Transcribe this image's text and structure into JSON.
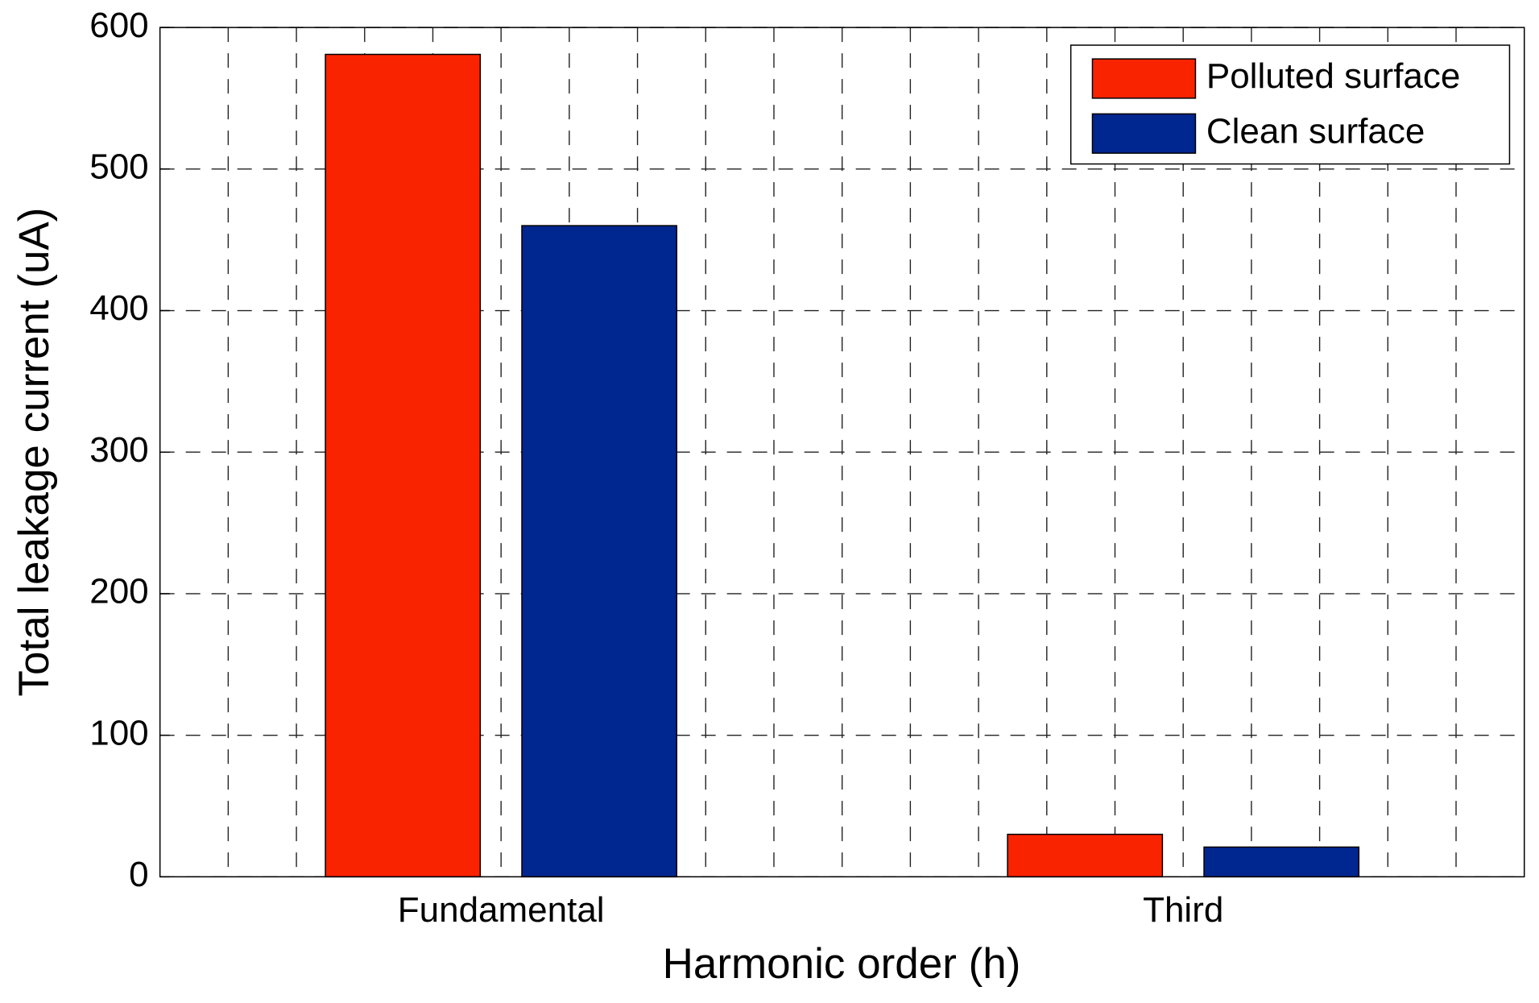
{
  "chart_data": {
    "type": "bar",
    "x_label": "Harmonic order (h)",
    "y_label": "Total leakage current (uA)",
    "categories": [
      "Fundamental",
      "Third"
    ],
    "series": [
      {
        "name": "Polluted surface",
        "color": "#fa2300",
        "values": [
          581,
          30
        ]
      },
      {
        "name": "Clean surface",
        "color": "#00268f",
        "values": [
          460,
          21
        ]
      }
    ],
    "ylim": [
      0,
      600
    ],
    "yticks": [
      0,
      100,
      200,
      300,
      400,
      500,
      600
    ],
    "xlim": [
      0.5,
      2.5
    ],
    "xticks": [
      0.6,
      0.7,
      0.8,
      0.9,
      1,
      1.1,
      1.2,
      1.3,
      1.4,
      1.5,
      1.6,
      1.7,
      1.8,
      1.9,
      2,
      2.1,
      2.2,
      2.3,
      2.4
    ],
    "grid": true,
    "legend_position": "upper right"
  }
}
